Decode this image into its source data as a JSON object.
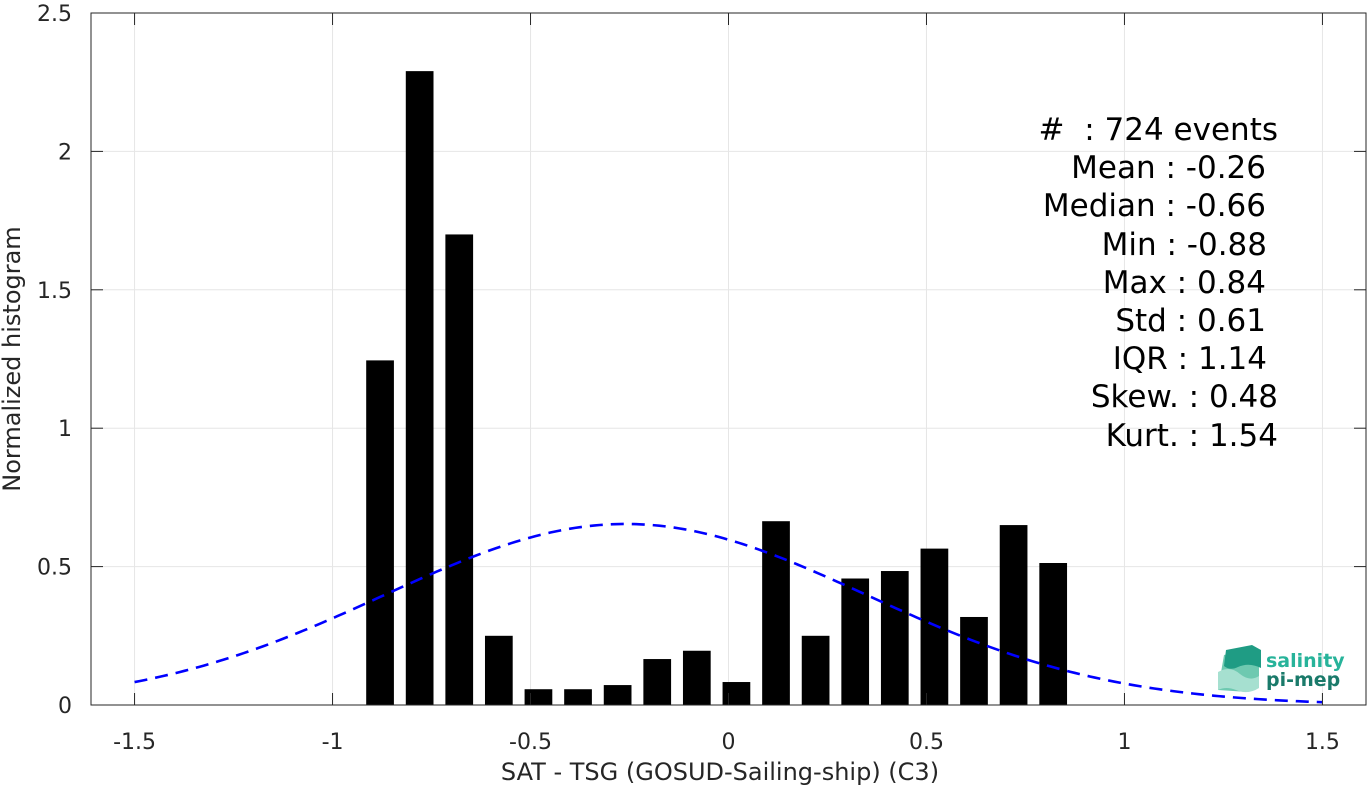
{
  "chart_data": {
    "type": "bar",
    "xlabel": "SAT - TSG (GOSUD-Sailing-ship) (C3)",
    "ylabel": "Normalized histogram",
    "xlim": [
      -1.61,
      1.61
    ],
    "ylim": [
      0,
      2.5
    ],
    "x_ticks": [
      -1.5,
      -1,
      -0.5,
      0,
      0.5,
      1,
      1.5
    ],
    "x_tick_labels": [
      "-1.5",
      "-1",
      "-0.5",
      "0",
      "0.5",
      "1",
      "1.5"
    ],
    "y_ticks": [
      0,
      0.5,
      1,
      1.5,
      2,
      2.5
    ],
    "y_tick_labels": [
      "0",
      "0.5",
      "1",
      "1.5",
      "2",
      "2.5"
    ],
    "grid": true,
    "bin_width": 0.1,
    "bar_width": 0.07,
    "bar_color": "#000000",
    "bins": [
      {
        "center": -0.88,
        "value": 1.245
      },
      {
        "center": -0.78,
        "value": 2.29
      },
      {
        "center": -0.68,
        "value": 1.7
      },
      {
        "center": -0.58,
        "value": 0.25
      },
      {
        "center": -0.48,
        "value": 0.057
      },
      {
        "center": -0.38,
        "value": 0.057
      },
      {
        "center": -0.28,
        "value": 0.072
      },
      {
        "center": -0.18,
        "value": 0.166
      },
      {
        "center": -0.08,
        "value": 0.196
      },
      {
        "center": 0.02,
        "value": 0.083
      },
      {
        "center": 0.12,
        "value": 0.664
      },
      {
        "center": 0.22,
        "value": 0.25
      },
      {
        "center": 0.32,
        "value": 0.457
      },
      {
        "center": 0.42,
        "value": 0.484
      },
      {
        "center": 0.52,
        "value": 0.565
      },
      {
        "center": 0.62,
        "value": 0.318
      },
      {
        "center": 0.72,
        "value": 0.65
      },
      {
        "center": 0.82,
        "value": 0.513
      }
    ],
    "fit_curve": {
      "type": "normal",
      "mean": -0.26,
      "std": 0.61,
      "x_range": [
        -1.5,
        1.5
      ],
      "color": "#0000ff",
      "style": "dashed"
    },
    "annotations": [
      "#  : 724 events",
      "Mean : -0.26",
      "Median : -0.66",
      "Min : -0.88",
      "Max : 0.84",
      "Std : 0.61",
      "IQR : 1.14",
      "Skew. : 0.48",
      "Kurt. : 1.54"
    ]
  },
  "logo": {
    "line1": "salinity",
    "line2": "pi-mep"
  }
}
